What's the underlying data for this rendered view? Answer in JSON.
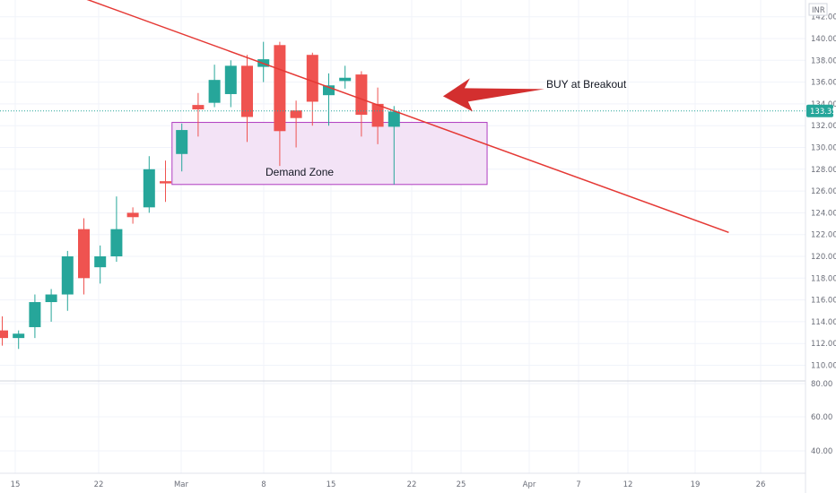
{
  "chart_data": {
    "type": "candlestick",
    "currency": "INR",
    "last_price_label": "133.35",
    "colors": {
      "up": "#26a69a",
      "down": "#ef5350",
      "trendline": "#e53935",
      "zone_fill": "#f3e3f6",
      "zone_border": "#b03bc0",
      "arrow": "#d32f2f",
      "badge": "#26a69a"
    },
    "y_ticks_upper": [
      "142.00",
      "140.00",
      "138.00",
      "136.00",
      "134.00",
      "132.00",
      "130.00",
      "128.00",
      "126.00",
      "124.00",
      "122.00",
      "120.00",
      "118.00",
      "116.00",
      "114.00",
      "112.00",
      "110.00"
    ],
    "y_ticks_lower": [
      "80.00",
      "60.00",
      "40.00"
    ],
    "x_ticks": [
      "15",
      "22",
      "Mar",
      "8",
      "15",
      "22",
      "25",
      "Apr",
      "7",
      "12",
      "19",
      "26"
    ],
    "candles": [
      {
        "o": 113.2,
        "h": 114.5,
        "l": 111.8,
        "c": 112.5
      },
      {
        "o": 112.5,
        "h": 113.2,
        "l": 111.5,
        "c": 112.9
      },
      {
        "o": 113.5,
        "h": 116.5,
        "l": 112.5,
        "c": 115.8
      },
      {
        "o": 115.8,
        "h": 117.0,
        "l": 114.0,
        "c": 116.5
      },
      {
        "o": 116.5,
        "h": 120.5,
        "l": 115.0,
        "c": 120.0
      },
      {
        "o": 122.5,
        "h": 123.5,
        "l": 116.5,
        "c": 118.0
      },
      {
        "o": 119.0,
        "h": 121.0,
        "l": 117.5,
        "c": 120.0
      },
      {
        "o": 120.0,
        "h": 125.5,
        "l": 119.5,
        "c": 122.5
      },
      {
        "o": 124.0,
        "h": 124.5,
        "l": 123.0,
        "c": 123.6
      },
      {
        "o": 124.5,
        "h": 129.2,
        "l": 124.0,
        "c": 128.0
      },
      {
        "o": 126.9,
        "h": 128.8,
        "l": 125.0,
        "c": 126.7
      },
      {
        "o": 129.4,
        "h": 132.2,
        "l": 127.8,
        "c": 131.6
      },
      {
        "o": 133.9,
        "h": 135.0,
        "l": 131.0,
        "c": 133.5
      },
      {
        "o": 134.1,
        "h": 137.6,
        "l": 133.7,
        "c": 136.2
      },
      {
        "o": 134.9,
        "h": 138.0,
        "l": 133.7,
        "c": 137.5
      },
      {
        "o": 137.5,
        "h": 138.5,
        "l": 130.5,
        "c": 132.8
      },
      {
        "o": 137.4,
        "h": 139.7,
        "l": 136.0,
        "c": 138.1
      },
      {
        "o": 139.4,
        "h": 139.7,
        "l": 128.3,
        "c": 131.5
      },
      {
        "o": 133.4,
        "h": 134.3,
        "l": 130.0,
        "c": 132.7
      },
      {
        "o": 138.5,
        "h": 138.7,
        "l": 132.0,
        "c": 134.2
      },
      {
        "o": 134.8,
        "h": 136.8,
        "l": 132.0,
        "c": 135.7
      },
      {
        "o": 136.1,
        "h": 137.5,
        "l": 135.4,
        "c": 136.4
      },
      {
        "o": 136.7,
        "h": 137.0,
        "l": 131.0,
        "c": 133.0
      },
      {
        "o": 134.0,
        "h": 135.5,
        "l": 130.3,
        "c": 131.9
      },
      {
        "o": 131.9,
        "h": 133.8,
        "l": 126.6,
        "c": 133.3
      }
    ],
    "trendline": [
      {
        "i": -7.5,
        "v": 150.5
      },
      {
        "i": 44.5,
        "v": 122.2
      }
    ],
    "demand_zone": {
      "label": "Demand Zone",
      "i0": 10.4,
      "i1": 29.7,
      "top": 132.3,
      "bottom": 126.6
    },
    "annotation": {
      "text": "BUY at Breakout",
      "arrow_tip_i": 27.0,
      "arrow_tip_v": 134.7
    }
  }
}
